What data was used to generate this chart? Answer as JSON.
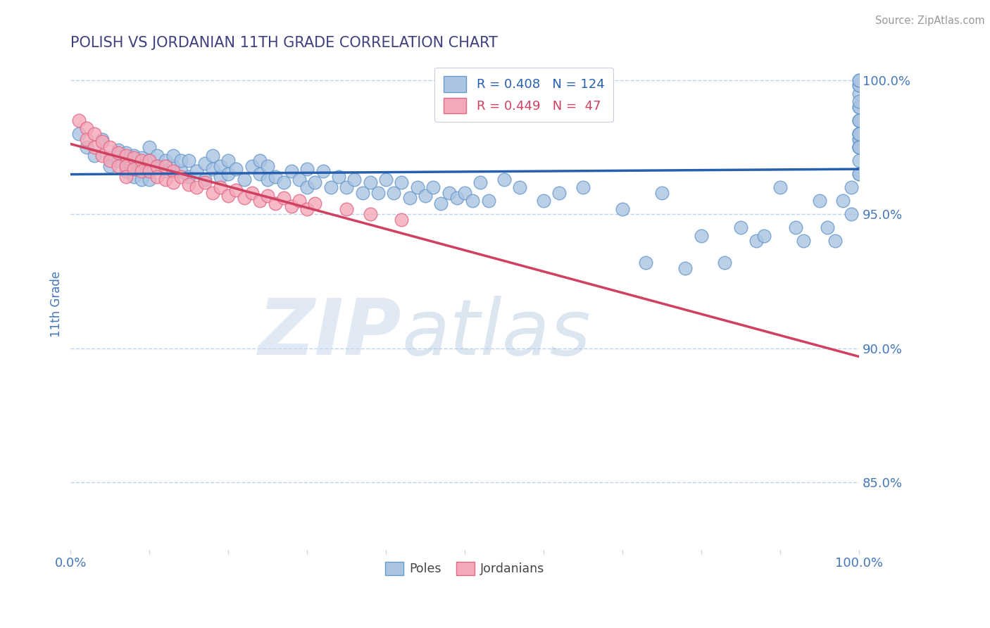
{
  "title": "POLISH VS JORDANIAN 11TH GRADE CORRELATION CHART",
  "source_text": "Source: ZipAtlas.com",
  "ylabel": "11th Grade",
  "watermark": "ZIPatlas",
  "xlim": [
    0.0,
    1.0
  ],
  "ylim": [
    0.825,
    1.008
  ],
  "yticks": [
    0.85,
    0.9,
    0.95,
    1.0
  ],
  "ytick_labels": [
    "85.0%",
    "90.0%",
    "95.0%",
    "100.0%"
  ],
  "xticks": [
    0.0,
    0.1,
    0.2,
    0.3,
    0.4,
    0.5,
    0.6,
    0.7,
    0.8,
    0.9,
    1.0
  ],
  "xtick_labels": [
    "0.0%",
    "",
    "",
    "",
    "",
    "",
    "",
    "",
    "",
    "",
    "100.0%"
  ],
  "poles_color": "#aac4e2",
  "poles_edge_color": "#6699cc",
  "jordanians_color": "#f5a8b8",
  "jordanians_edge_color": "#e06888",
  "poles_line_color": "#2860b0",
  "jordanians_line_color": "#d04060",
  "title_color": "#404080",
  "tick_label_color": "#4477bb",
  "grid_color": "#b8d0ea",
  "background_color": "#ffffff",
  "poles_x": [
    0.01,
    0.02,
    0.03,
    0.04,
    0.05,
    0.05,
    0.06,
    0.06,
    0.07,
    0.07,
    0.07,
    0.08,
    0.08,
    0.08,
    0.09,
    0.09,
    0.09,
    0.1,
    0.1,
    0.1,
    0.1,
    0.11,
    0.11,
    0.12,
    0.12,
    0.13,
    0.13,
    0.14,
    0.14,
    0.15,
    0.15,
    0.16,
    0.17,
    0.17,
    0.18,
    0.18,
    0.19,
    0.19,
    0.2,
    0.2,
    0.21,
    0.22,
    0.23,
    0.24,
    0.24,
    0.25,
    0.25,
    0.26,
    0.27,
    0.28,
    0.29,
    0.3,
    0.3,
    0.31,
    0.32,
    0.33,
    0.34,
    0.35,
    0.36,
    0.37,
    0.38,
    0.39,
    0.4,
    0.41,
    0.42,
    0.43,
    0.44,
    0.45,
    0.46,
    0.47,
    0.48,
    0.49,
    0.5,
    0.51,
    0.52,
    0.53,
    0.55,
    0.57,
    0.6,
    0.62,
    0.65,
    0.7,
    0.73,
    0.75,
    0.78,
    0.8,
    0.83,
    0.85,
    0.87,
    0.88,
    0.9,
    0.92,
    0.93,
    0.95,
    0.96,
    0.97,
    0.98,
    0.99,
    0.99,
    1.0,
    1.0,
    1.0,
    1.0,
    1.0,
    1.0,
    1.0,
    1.0,
    1.0,
    1.0,
    1.0,
    1.0,
    1.0,
    1.0,
    1.0,
    1.0,
    1.0,
    1.0,
    1.0,
    1.0,
    1.0,
    1.0,
    1.0,
    1.0,
    1.0
  ],
  "poles_y": [
    0.98,
    0.975,
    0.972,
    0.978,
    0.971,
    0.968,
    0.974,
    0.97,
    0.969,
    0.973,
    0.966,
    0.972,
    0.967,
    0.964,
    0.971,
    0.968,
    0.963,
    0.97,
    0.966,
    0.963,
    0.975,
    0.968,
    0.972,
    0.966,
    0.97,
    0.968,
    0.972,
    0.966,
    0.97,
    0.964,
    0.97,
    0.966,
    0.969,
    0.963,
    0.967,
    0.972,
    0.964,
    0.968,
    0.965,
    0.97,
    0.967,
    0.963,
    0.968,
    0.965,
    0.97,
    0.963,
    0.968,
    0.964,
    0.962,
    0.966,
    0.963,
    0.96,
    0.967,
    0.962,
    0.966,
    0.96,
    0.964,
    0.96,
    0.963,
    0.958,
    0.962,
    0.958,
    0.963,
    0.958,
    0.962,
    0.956,
    0.96,
    0.957,
    0.96,
    0.954,
    0.958,
    0.956,
    0.958,
    0.955,
    0.962,
    0.955,
    0.963,
    0.96,
    0.955,
    0.958,
    0.96,
    0.952,
    0.932,
    0.958,
    0.93,
    0.942,
    0.932,
    0.945,
    0.94,
    0.942,
    0.96,
    0.945,
    0.94,
    0.955,
    0.945,
    0.94,
    0.955,
    0.95,
    0.96,
    0.978,
    0.97,
    0.975,
    0.98,
    0.965,
    0.985,
    0.975,
    0.98,
    0.99,
    0.975,
    0.995,
    0.985,
    0.978,
    0.99,
    0.975,
    0.998,
    0.98,
    0.985,
    0.992,
    0.965,
    0.998,
    1.0,
    0.975,
    0.98,
    1.0
  ],
  "jordanians_x": [
    0.01,
    0.02,
    0.02,
    0.03,
    0.03,
    0.04,
    0.04,
    0.05,
    0.05,
    0.06,
    0.06,
    0.07,
    0.07,
    0.07,
    0.08,
    0.08,
    0.09,
    0.09,
    0.1,
    0.1,
    0.11,
    0.11,
    0.12,
    0.12,
    0.13,
    0.13,
    0.14,
    0.15,
    0.16,
    0.17,
    0.18,
    0.19,
    0.2,
    0.21,
    0.22,
    0.23,
    0.24,
    0.25,
    0.26,
    0.27,
    0.28,
    0.29,
    0.3,
    0.31,
    0.35,
    0.38,
    0.42
  ],
  "jordanians_y": [
    0.985,
    0.982,
    0.978,
    0.98,
    0.975,
    0.977,
    0.972,
    0.975,
    0.97,
    0.973,
    0.968,
    0.972,
    0.968,
    0.964,
    0.971,
    0.967,
    0.97,
    0.966,
    0.97,
    0.966,
    0.968,
    0.964,
    0.968,
    0.963,
    0.966,
    0.962,
    0.964,
    0.961,
    0.96,
    0.962,
    0.958,
    0.96,
    0.957,
    0.959,
    0.956,
    0.958,
    0.955,
    0.957,
    0.954,
    0.956,
    0.953,
    0.955,
    0.952,
    0.954,
    0.952,
    0.95,
    0.948
  ]
}
